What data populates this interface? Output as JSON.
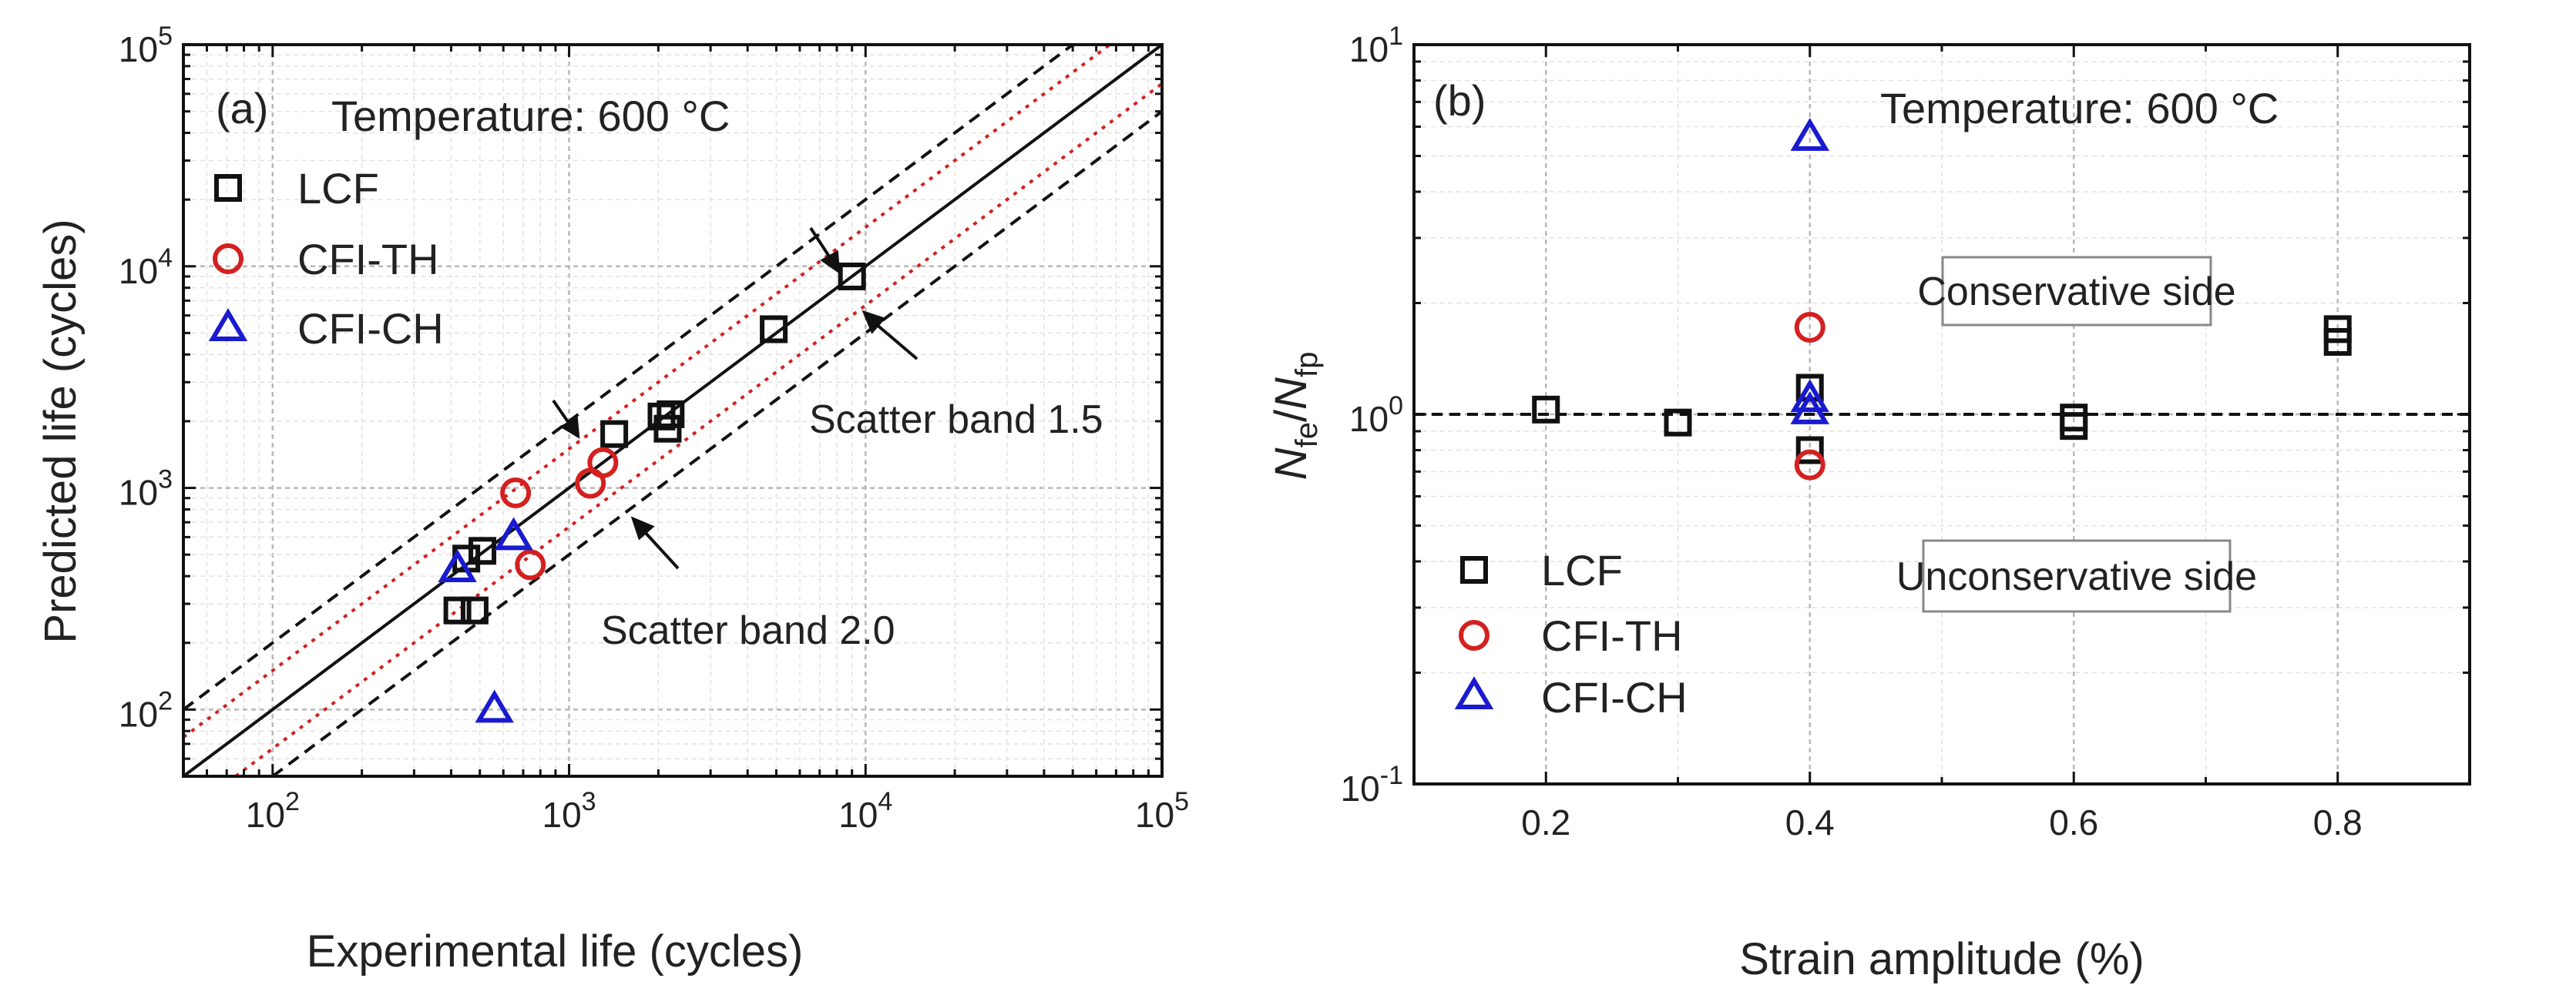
{
  "chart_data": [
    {
      "id": "a",
      "type": "scatter",
      "panel_label": "(a)",
      "annotation_temperature": "Temperature: 600 °C",
      "xlabel": "Experimental life (cycles)",
      "ylabel": "Predicted life (cycles)",
      "xscale": "log",
      "yscale": "log",
      "xlim": [
        50,
        100000
      ],
      "ylim": [
        50,
        100000
      ],
      "x_ticks": [
        {
          "value": 100,
          "base": "10",
          "exp": "2"
        },
        {
          "value": 1000,
          "base": "10",
          "exp": "3"
        },
        {
          "value": 10000,
          "base": "10",
          "exp": "4"
        },
        {
          "value": 100000,
          "base": "10",
          "exp": "5"
        }
      ],
      "y_ticks": [
        {
          "value": 100,
          "base": "10",
          "exp": "2"
        },
        {
          "value": 1000,
          "base": "10",
          "exp": "3"
        },
        {
          "value": 10000,
          "base": "10",
          "exp": "4"
        },
        {
          "value": 100000,
          "base": "10",
          "exp": "5"
        }
      ],
      "grid": true,
      "legend_position": "top-left",
      "series": [
        {
          "name": "LCF",
          "marker": "square",
          "color": "#111111",
          "points": [
            [
              420,
              280
            ],
            [
              480,
              280
            ],
            [
              450,
              480
            ],
            [
              510,
              520
            ],
            [
              1420,
              1750
            ],
            [
              2050,
              2100
            ],
            [
              2150,
              1850
            ],
            [
              2200,
              2150
            ],
            [
              4900,
              5200
            ],
            [
              9000,
              9000
            ]
          ]
        },
        {
          "name": "CFI-TH",
          "marker": "circle",
          "color": "#d42020",
          "points": [
            [
              660,
              950
            ],
            [
              740,
              450
            ],
            [
              1180,
              1050
            ],
            [
              1300,
              1300
            ]
          ]
        },
        {
          "name": "CFI-CH",
          "marker": "triangle",
          "color": "#1a1ad0",
          "points": [
            [
              420,
              430
            ],
            [
              650,
              600
            ],
            [
              560,
              100
            ]
          ]
        }
      ],
      "reference_lines": [
        {
          "name": "1:1",
          "factor": 1,
          "style": "solid",
          "color": "#111111"
        },
        {
          "name": "Scatter band 1.5",
          "factor": 1.5,
          "style": "dotted",
          "color": "#d42020"
        },
        {
          "name": "Scatter band 2.0",
          "factor": 2.0,
          "style": "dashed",
          "color": "#111111"
        }
      ],
      "band_labels": {
        "band_15": "Scatter band 1.5",
        "band_20": "Scatter band 2.0"
      }
    },
    {
      "id": "b",
      "type": "scatter",
      "panel_label": "(b)",
      "annotation_temperature": "Temperature: 600 °C",
      "xlabel": "Strain amplitude (%)",
      "ylabel_main": "N",
      "ylabel_sub1": "fe",
      "ylabel_sep": "/",
      "ylabel_sub2": "fp",
      "xscale": "linear",
      "yscale": "log",
      "xlim": [
        0.1,
        0.9
      ],
      "ylim": [
        0.1,
        10
      ],
      "x_ticks": [
        {
          "value": 0.2,
          "label": "0.2"
        },
        {
          "value": 0.4,
          "label": "0.4"
        },
        {
          "value": 0.6,
          "label": "0.6"
        },
        {
          "value": 0.8,
          "label": "0.8"
        }
      ],
      "y_ticks": [
        {
          "value": 0.1,
          "base": "10",
          "exp": "-1"
        },
        {
          "value": 1,
          "base": "10",
          "exp": "0"
        },
        {
          "value": 10,
          "base": "10",
          "exp": "1"
        }
      ],
      "grid": true,
      "legend_position": "bottom-left",
      "reference_line": {
        "y": 1.0,
        "style": "dashed",
        "color": "#111111"
      },
      "regions": {
        "upper": "Conservative side",
        "lower": "Unconservative side"
      },
      "series": [
        {
          "name": "LCF",
          "marker": "square",
          "color": "#111111",
          "points": [
            [
              0.2,
              1.03
            ],
            [
              0.3,
              0.95
            ],
            [
              0.4,
              1.18
            ],
            [
              0.4,
              0.8
            ],
            [
              0.6,
              0.98
            ],
            [
              0.6,
              0.93
            ],
            [
              0.8,
              1.7
            ],
            [
              0.8,
              1.57
            ]
          ]
        },
        {
          "name": "CFI-TH",
          "marker": "circle",
          "color": "#d42020",
          "points": [
            [
              0.4,
              1.72
            ],
            [
              0.4,
              0.73
            ]
          ]
        },
        {
          "name": "CFI-CH",
          "marker": "triangle",
          "color": "#1a1ad0",
          "points": [
            [
              0.4,
              5.6
            ],
            [
              0.4,
              1.1
            ],
            [
              0.4,
              1.02
            ]
          ]
        }
      ]
    }
  ]
}
